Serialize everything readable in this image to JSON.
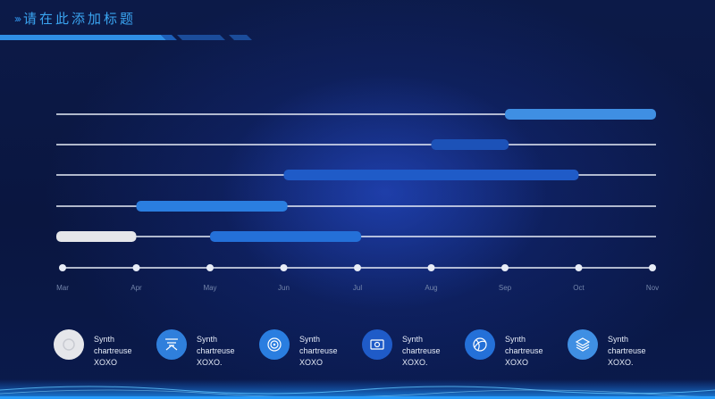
{
  "page": {
    "title": "请在此添加标题",
    "title_chevrons": "›››"
  },
  "chart_data": {
    "type": "gantt",
    "x_axis": {
      "tick_labels": [
        "Mar",
        "Apr",
        "May",
        "Jun",
        "Jul",
        "Aug",
        "Sep",
        "Oct",
        "Nov"
      ],
      "range": [
        "Mar",
        "Nov"
      ]
    },
    "rows": [
      {
        "bars": [
          {
            "start": 6.0,
            "end": 8.0,
            "color": "#3f8fe3"
          }
        ]
      },
      {
        "bars": [
          {
            "start": 5.0,
            "end": 6.05,
            "color": "#1c52b8"
          }
        ]
      },
      {
        "bars": [
          {
            "start": 3.0,
            "end": 7.0,
            "color": "#1f5bc8"
          }
        ]
      },
      {
        "bars": [
          {
            "start": 1.0,
            "end": 3.05,
            "color": "#2a7ee0"
          }
        ]
      },
      {
        "bars": [
          {
            "start": 0.0,
            "end": 1.0,
            "color": "#e5e6ea"
          },
          {
            "start": 2.0,
            "end": 4.05,
            "color": "#2470d8"
          }
        ]
      }
    ],
    "colors": {
      "row_line": "#e8edf7",
      "axis_line": "#e8edf7",
      "tick_label": "#7486ab"
    }
  },
  "legend": [
    {
      "icon": "circle-icon",
      "text": "Synth\nchartreuse\nXOXO",
      "color": "#e5e6ea"
    },
    {
      "icon": "weather-icon",
      "text": "Synth\nchartreuse\nXOXO.",
      "color": "#3f8fe3"
    },
    {
      "icon": "target-icon",
      "text": "Synth\nchartreuse\nXOXO",
      "color": "#2a7ee0"
    },
    {
      "icon": "money-icon",
      "text": "Synth\nchartreuse\nXOXO.",
      "color": "#1f5bc8"
    },
    {
      "icon": "globe-icon",
      "text": "Synth\nchartreuse\nXOXO",
      "color": "#2470d8"
    },
    {
      "icon": "layers-icon",
      "text": "Synth\nchartreuse\nXOXO.",
      "color": "#3f8fe3"
    }
  ]
}
